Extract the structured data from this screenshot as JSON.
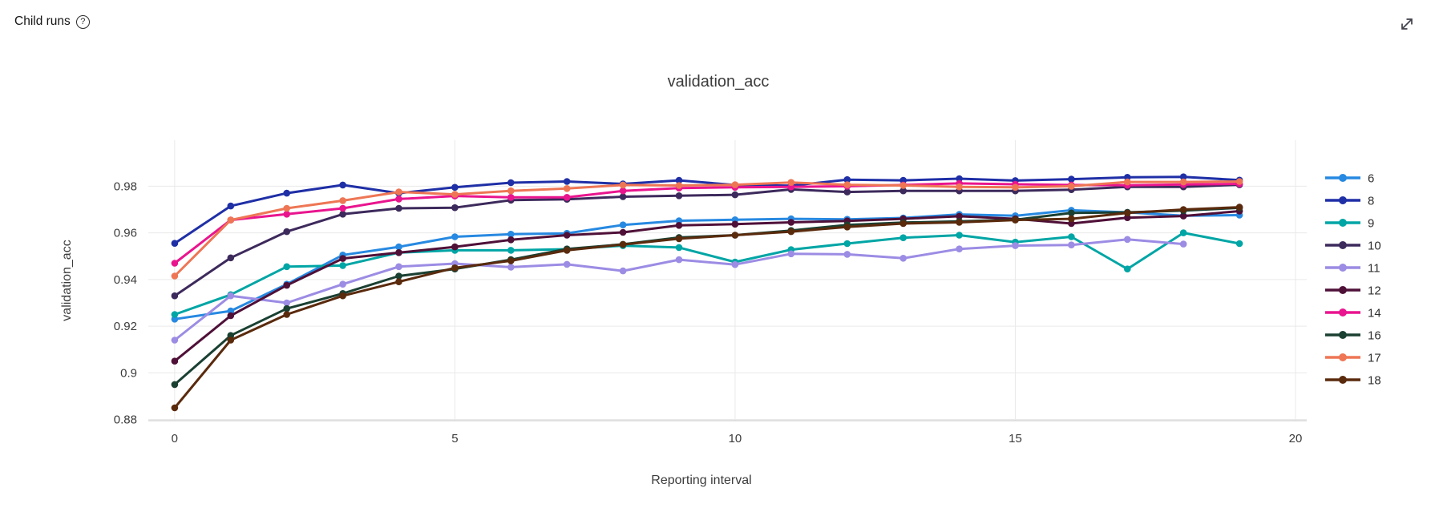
{
  "header": {
    "title": "Child runs",
    "help_icon": "?"
  },
  "icons": {
    "help": "question-circle-icon",
    "expand": "diagonal-expand-arrow-icon"
  },
  "chart_data": {
    "type": "line",
    "title": "validation_acc",
    "xlabel": "Reporting interval",
    "ylabel": "validation_acc",
    "grid": true,
    "legend_position": "right",
    "xlim": [
      -0.47,
      20.2
    ],
    "ylim": [
      0.8795,
      0.9997
    ],
    "x_ticks": [
      0,
      5,
      10,
      15,
      20
    ],
    "x_tick_labels": [
      "0",
      "5",
      "10",
      "15",
      "20"
    ],
    "y_ticks": [
      0.88,
      0.9,
      0.92,
      0.94,
      0.96,
      0.98
    ],
    "y_tick_labels": [
      "0.88",
      "0.9",
      "0.92",
      "0.94",
      "0.96",
      "0.98"
    ],
    "x": [
      0,
      1,
      2,
      3,
      4,
      5,
      6,
      7,
      8,
      9,
      10,
      11,
      12,
      13,
      14,
      15,
      16,
      17,
      18,
      19
    ],
    "series": [
      {
        "name": "6",
        "color": "#2789E1",
        "values": [
          0.923,
          0.9265,
          0.938,
          0.9505,
          0.954,
          0.9583,
          0.9594,
          0.9598,
          0.9634,
          0.9652,
          0.9656,
          0.966,
          0.9658,
          0.9664,
          0.9679,
          0.9673,
          0.9697,
          0.9688,
          0.9673,
          0.9676
        ]
      },
      {
        "name": "8",
        "color": "#1F2FA6",
        "values": [
          0.9555,
          0.9715,
          0.977,
          0.9805,
          0.977,
          0.9795,
          0.9815,
          0.982,
          0.981,
          0.9825,
          0.9805,
          0.9802,
          0.9828,
          0.9825,
          0.9832,
          0.9824,
          0.983,
          0.9838,
          0.984,
          0.9826
        ]
      },
      {
        "name": "9",
        "color": "#00A5A5",
        "values": [
          0.925,
          0.9335,
          0.9455,
          0.946,
          0.9515,
          0.9525,
          0.9525,
          0.953,
          0.9545,
          0.9537,
          0.9475,
          0.9528,
          0.9554,
          0.9579,
          0.959,
          0.956,
          0.9583,
          0.9445,
          0.96,
          0.9554
        ]
      },
      {
        "name": "10",
        "color": "#3D2A5C",
        "values": [
          0.933,
          0.9493,
          0.9605,
          0.968,
          0.9705,
          0.9708,
          0.974,
          0.9744,
          0.9755,
          0.9759,
          0.9763,
          0.9786,
          0.9775,
          0.978,
          0.978,
          0.978,
          0.9785,
          0.9797,
          0.9797,
          0.9806
        ]
      },
      {
        "name": "11",
        "color": "#9C8CE4",
        "values": [
          0.914,
          0.933,
          0.93,
          0.938,
          0.9455,
          0.9468,
          0.9453,
          0.9465,
          0.9437,
          0.9485,
          0.9464,
          0.951,
          0.9508,
          0.9491,
          0.9531,
          0.9545,
          0.9548,
          0.9572,
          0.9552
        ]
      },
      {
        "name": "12",
        "color": "#4F1038",
        "values": [
          0.905,
          0.9245,
          0.9375,
          0.949,
          0.9515,
          0.954,
          0.957,
          0.959,
          0.9602,
          0.9632,
          0.9637,
          0.9645,
          0.9651,
          0.966,
          0.9671,
          0.966,
          0.964,
          0.9665,
          0.9672,
          0.9693
        ]
      },
      {
        "name": "14",
        "color": "#E9158E",
        "values": [
          0.947,
          0.9655,
          0.968,
          0.9705,
          0.9745,
          0.9758,
          0.9752,
          0.9752,
          0.978,
          0.9792,
          0.9795,
          0.9797,
          0.98,
          0.9805,
          0.9812,
          0.9808,
          0.9805,
          0.9804,
          0.9807,
          0.981
        ]
      },
      {
        "name": "16",
        "color": "#1A4032",
        "values": [
          0.895,
          0.916,
          0.9275,
          0.934,
          0.9415,
          0.9445,
          0.9485,
          0.9531,
          0.9551,
          0.958,
          0.959,
          0.961,
          0.9634,
          0.9644,
          0.9649,
          0.9656,
          0.9685,
          0.9688,
          0.9695,
          0.9707
        ]
      },
      {
        "name": "17",
        "color": "#EE7655",
        "values": [
          0.9415,
          0.9655,
          0.9705,
          0.9738,
          0.9775,
          0.9765,
          0.978,
          0.979,
          0.9805,
          0.9803,
          0.9806,
          0.9816,
          0.9806,
          0.9803,
          0.9797,
          0.9795,
          0.98,
          0.9818,
          0.9818,
          0.982
        ]
      },
      {
        "name": "18",
        "color": "#5A2A0D",
        "values": [
          0.885,
          0.914,
          0.925,
          0.933,
          0.939,
          0.945,
          0.948,
          0.9525,
          0.955,
          0.9575,
          0.959,
          0.9605,
          0.9625,
          0.964,
          0.9645,
          0.9655,
          0.966,
          0.9685,
          0.97,
          0.971
        ]
      }
    ]
  }
}
